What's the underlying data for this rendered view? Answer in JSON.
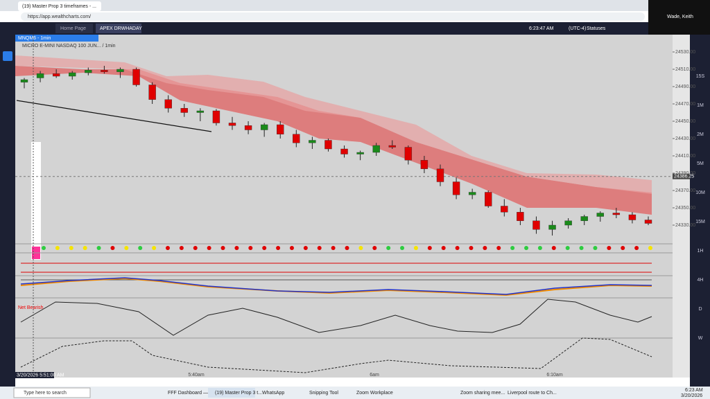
{
  "browser": {
    "tab_title": "(19) Master Prop 3 timeframes - ...",
    "url": "https://app.wealthcharts.com/"
  },
  "user": "Wade, Keith",
  "app_tabs": [
    "Home Page",
    "APEX DRWHADAY"
  ],
  "clock": "6:23:47 AM",
  "timezone": "(UTC-4)",
  "status": "Statuses",
  "chart": {
    "symbol": "MNQM6 - 1min",
    "description": "MICRO E-MINI NASDAQ 100 JUN... / 1min",
    "candles": [
      [
        24495,
        24500,
        24488,
        24498
      ],
      [
        24500,
        24508,
        24495,
        24505
      ],
      [
        24505,
        24510,
        24500,
        24502
      ],
      [
        24502,
        24508,
        24498,
        24506
      ],
      [
        24506,
        24512,
        24503,
        24509
      ],
      [
        24509,
        24514,
        24505,
        24507
      ],
      [
        24507,
        24512,
        24500,
        24510
      ],
      [
        24510,
        24512,
        24490,
        24492
      ],
      [
        24492,
        24495,
        24470,
        24475
      ],
      [
        24475,
        24480,
        24460,
        24465
      ],
      [
        24465,
        24470,
        24455,
        24460
      ],
      [
        24460,
        24465,
        24450,
        24462
      ],
      [
        24462,
        24464,
        24445,
        24448
      ],
      [
        24448,
        24455,
        24440,
        24445
      ],
      [
        24445,
        24450,
        24435,
        24440
      ],
      [
        24440,
        24448,
        24432,
        24446
      ],
      [
        24446,
        24450,
        24430,
        24435
      ],
      [
        24435,
        24440,
        24420,
        24425
      ],
      [
        24425,
        24432,
        24418,
        24428
      ],
      [
        24428,
        24430,
        24415,
        24418
      ],
      [
        24418,
        24422,
        24408,
        24412
      ],
      [
        24412,
        24416,
        24405,
        24414
      ],
      [
        24414,
        24425,
        24410,
        24422
      ],
      [
        24422,
        24428,
        24418,
        24420
      ],
      [
        24420,
        24422,
        24400,
        24405
      ],
      [
        24405,
        24410,
        24390,
        24395
      ],
      [
        24395,
        24400,
        24375,
        24380
      ],
      [
        24380,
        24385,
        24360,
        24365
      ],
      [
        24365,
        24372,
        24360,
        24368
      ],
      [
        24368,
        24370,
        24350,
        24352
      ],
      [
        24352,
        24360,
        24340,
        24345
      ],
      [
        24345,
        24350,
        24330,
        24335
      ],
      [
        24335,
        24340,
        24320,
        24325
      ],
      [
        24325,
        24335,
        24318,
        24330
      ],
      [
        24330,
        24338,
        24326,
        24335
      ],
      [
        24335,
        24342,
        24330,
        24340
      ],
      [
        24340,
        24346,
        24334,
        24344
      ],
      [
        24344,
        24350,
        24338,
        24342
      ],
      [
        24342,
        24345,
        24332,
        24336
      ],
      [
        24336,
        24340,
        24330,
        24332
      ]
    ],
    "price_ticks": [
      {
        "value": 24530,
        "label": "24530.00"
      },
      {
        "value": 24510,
        "label": "24510.00"
      },
      {
        "value": 24490,
        "label": "24490.00"
      },
      {
        "value": 24470,
        "label": "24470.00"
      },
      {
        "value": 24450,
        "label": "24450.00"
      },
      {
        "value": 24430,
        "label": "24430.00"
      },
      {
        "value": 24410,
        "label": "24410.00"
      },
      {
        "value": 24390,
        "label": "24390.00"
      },
      {
        "value": 24370,
        "label": "24370.00"
      },
      {
        "value": 24350,
        "label": "24350.00"
      },
      {
        "value": 24330,
        "label": "24330.00"
      }
    ],
    "last_price": {
      "value": 24386.25,
      "label": "24386.25"
    },
    "signal_dots": [
      "#2ecc40",
      "#f5e400",
      "#f5e400",
      "#f5e400",
      "#2ecc40",
      "#e00000",
      "#f5e400",
      "#2ecc40",
      "#f5e400",
      "#e00000",
      "#e00000",
      "#e00000",
      "#e00000",
      "#e00000",
      "#e00000",
      "#e00000",
      "#e00000",
      "#e00000",
      "#e00000",
      "#e00000",
      "#e00000",
      "#e00000",
      "#e00000",
      "#f5e400",
      "#e00000",
      "#2ecc40",
      "#2ecc40",
      "#f5e400",
      "#e00000",
      "#e00000",
      "#e00000",
      "#e00000",
      "#e00000",
      "#e00000",
      "#2ecc40",
      "#2ecc40",
      "#2ecc40",
      "#e00000",
      "#2ecc40",
      "#2ecc40",
      "#2ecc40",
      "#e00000",
      "#e00000",
      "#e00000",
      "#f5e400"
    ],
    "panel_label": "Net Bearish",
    "time_labels": [
      "5:40am",
      "6am",
      "6:10am"
    ],
    "cursor_time": "3/20/2026 5:51:00 AM"
  },
  "timeframes": [
    "15S",
    "1M",
    "2M",
    "5M",
    "10M",
    "15M",
    "1H",
    "4H",
    "D",
    "W"
  ],
  "taskbar": {
    "search": "Type here to search",
    "apps": [
      "FFF Dashboard —...",
      "(19) Master Prop 3 t...",
      "WhatsApp",
      "Snipping Tool",
      "Zoom Workplace",
      "Zoom sharing mee...",
      "Liverpool route to Ch..."
    ],
    "time": "6:23 AM",
    "date": "3/20/2026"
  }
}
